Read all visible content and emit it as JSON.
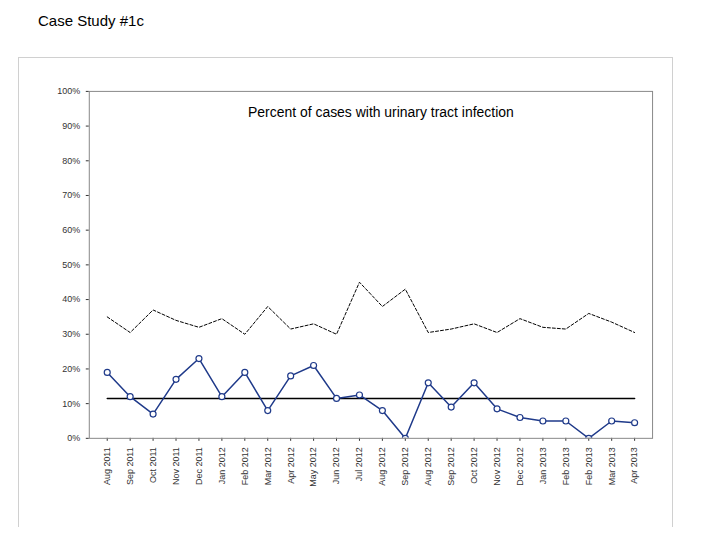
{
  "heading": "Case Study #1c",
  "chart_data": {
    "type": "line",
    "title": "Percent of cases with urinary tract infection",
    "categories": [
      "Aug 2011",
      "Sep 2011",
      "Oct 2011",
      "Nov 2011",
      "Dec 2011",
      "Jan 2012",
      "Feb 2012",
      "Mar 2012",
      "Apr 2012",
      "May 2012",
      "Jun 2012",
      "Jul 2012",
      "Aug 2012",
      "Sep 2012",
      "Aug 2012",
      "Sep 2012",
      "Oct 2012",
      "Nov 2012",
      "Dec 2012",
      "Jan 2013",
      "Feb 2013",
      "Feb 2013",
      "Mar 2013",
      "Apr 2013"
    ],
    "series": [
      {
        "color": "#1f3a8a",
        "marker": "circle",
        "line_style": "solid",
        "values": [
          19,
          12,
          7,
          17,
          23,
          12,
          19,
          8,
          18,
          21,
          11.5,
          12.5,
          8,
          0,
          16,
          9,
          16,
          8.5,
          6,
          5,
          5,
          0,
          5,
          4.5
        ]
      },
      {
        "color": "#000000",
        "marker": "none",
        "line_style": "dashed",
        "values": [
          35,
          30.5,
          37,
          34,
          32,
          34.5,
          30,
          38,
          31.5,
          33,
          30,
          45,
          38,
          43,
          30.5,
          31.5,
          33,
          30.5,
          34.5,
          32,
          31.5,
          36,
          33.5,
          30.5
        ]
      },
      {
        "color": "#000000",
        "marker": "none",
        "line_style": "solid",
        "values": [
          11.5,
          11.5,
          11.5,
          11.5,
          11.5,
          11.5,
          11.5,
          11.5,
          11.5,
          11.5,
          11.5,
          11.5,
          11.5,
          11.5,
          11.5,
          11.5,
          11.5,
          11.5,
          11.5,
          11.5,
          11.5,
          11.5,
          11.5,
          11.5
        ]
      }
    ],
    "ylim": [
      0,
      100
    ],
    "yticks": [
      {
        "value": 0,
        "label": "0%"
      },
      {
        "value": 10,
        "label": "10%"
      },
      {
        "value": 20,
        "label": "20%"
      },
      {
        "value": 30,
        "label": "30%"
      },
      {
        "value": 40,
        "label": "40%"
      },
      {
        "value": 50,
        "label": "50%"
      },
      {
        "value": 60,
        "label": "60%"
      },
      {
        "value": 70,
        "label": "70%"
      },
      {
        "value": 80,
        "label": "80%"
      },
      {
        "value": 90,
        "label": "90%"
      },
      {
        "value": 100,
        "label": "100%"
      }
    ],
    "grid": false
  }
}
